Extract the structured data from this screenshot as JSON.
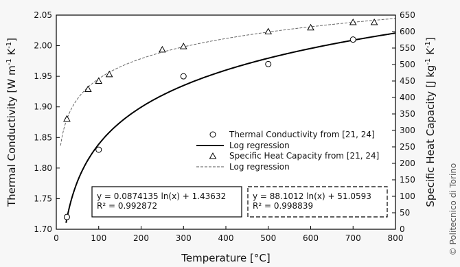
{
  "credit": "© Politecnico di Torino",
  "chart_data": {
    "type": "scatter",
    "xlabel": "Temperature [°C]",
    "ylabel_left": "Thermal Conductivity [W m⁻¹ K⁻¹]",
    "ylabel_right": "Specific Heat Capacity [J kg⁻¹ K⁻¹]",
    "ylabel_left_parts": [
      "Thermal Conductivity [W m",
      "-1",
      " K",
      "-1",
      "]"
    ],
    "ylabel_right_parts": [
      "Specific Heat Capacity [J kg",
      "-1",
      " K",
      "-1",
      "]"
    ],
    "xlim": [
      0,
      800
    ],
    "ylim_left": [
      1.7,
      2.05
    ],
    "ylim_right": [
      0,
      650
    ],
    "x_ticks": [
      "0",
      "100",
      "200",
      "300",
      "400",
      "500",
      "600",
      "700",
      "800"
    ],
    "y_left_ticks": [
      "1.70",
      "1.75",
      "1.80",
      "1.85",
      "1.90",
      "1.95",
      "2.00",
      "2.05"
    ],
    "y_right_ticks": [
      "0",
      "50",
      "100",
      "150",
      "200",
      "250",
      "300",
      "350",
      "400",
      "450",
      "500",
      "550",
      "600",
      "650"
    ],
    "grid": false,
    "series": [
      {
        "name": "Thermal Conductivity from [21, 24]",
        "axis": "left",
        "marker": "circle",
        "points": [
          [
            25,
            1.72
          ],
          [
            100,
            1.83
          ],
          [
            300,
            1.95
          ],
          [
            500,
            1.97
          ],
          [
            700,
            2.01
          ]
        ]
      },
      {
        "name": "Log regression",
        "axis": "left",
        "line": "solid",
        "fit": {
          "a": 0.0874135,
          "b": 1.43632
        },
        "x_range": [
          23,
          800
        ]
      },
      {
        "name": "Specific Heat Capacity from [21, 24]",
        "axis": "right",
        "marker": "triangle",
        "points": [
          [
            25,
            335
          ],
          [
            75,
            425
          ],
          [
            100,
            450
          ],
          [
            125,
            470
          ],
          [
            250,
            545
          ],
          [
            300,
            555
          ],
          [
            500,
            600
          ],
          [
            600,
            612
          ],
          [
            700,
            628
          ],
          [
            750,
            628
          ]
        ]
      },
      {
        "name": "Log regression",
        "axis": "right",
        "line": "dashed",
        "fit": {
          "a": 88.1012,
          "b": 51.0593
        },
        "x_range": [
          10,
          800
        ]
      }
    ],
    "legend_position": "center-right",
    "annotations": [
      {
        "line1": "y = 0.0874135 ln(x) + 1.43632",
        "line2": "R² = 0.992872",
        "border": "solid"
      },
      {
        "line1": "y = 88.1012 ln(x) + 51.0593",
        "line2": "R² = 0.998839",
        "border": "dashed"
      }
    ]
  }
}
